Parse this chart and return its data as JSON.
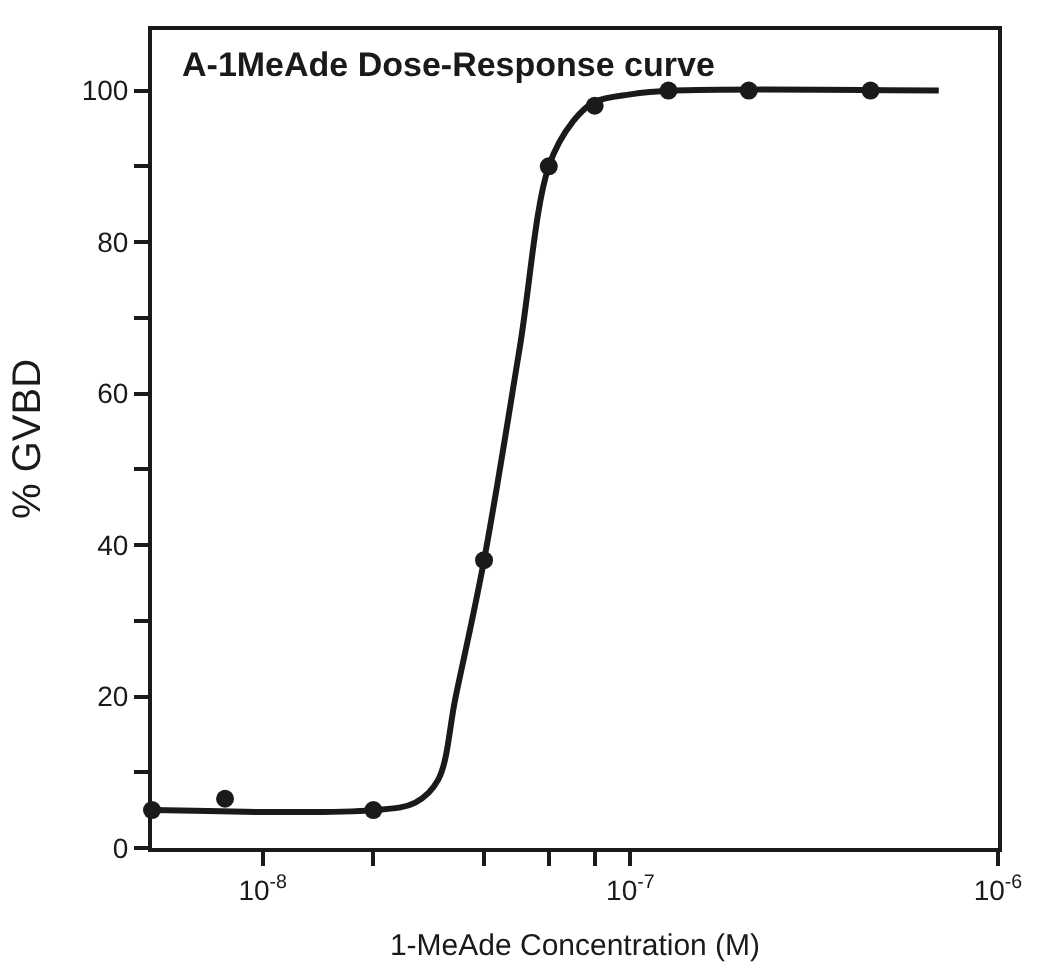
{
  "chart_data": {
    "type": "scatter",
    "title": "A-1MeAde Dose-Response curve",
    "xlabel": "1-MeAde Concentration (M)",
    "ylabel": "% GVBD",
    "log": "x",
    "xlim": [
      5e-09,
      1e-06
    ],
    "xticks": [
      {
        "value": 1e-08,
        "label": "10$^{-8}$"
      },
      {
        "value": 2e-08,
        "label": null
      },
      {
        "value": 4e-08,
        "label": null
      },
      {
        "value": 6e-08,
        "label": null
      },
      {
        "value": 8e-08,
        "label": null
      },
      {
        "value": 1e-07,
        "label": "10$^{-7}$"
      },
      {
        "value": 1e-06,
        "label": "10$^{-6}$"
      }
    ],
    "ylim": [
      0,
      108
    ],
    "yticks": [
      0,
      {
        "value": 10,
        "label": null
      },
      20,
      {
        "value": 30,
        "label": null
      },
      40,
      {
        "value": 50,
        "label": null
      },
      60,
      {
        "value": 70,
        "label": null
      },
      80,
      {
        "value": 90,
        "label": null
      },
      100
    ],
    "marker": "circle",
    "series": [
      {
        "type": "line",
        "color": "#1a1a1a",
        "marker": "none",
        "x": [
          5e-09,
          2e-08,
          2.6e-08,
          3e-08,
          3.35e-08,
          4e-08,
          5e-08,
          6e-08,
          7e-08,
          8e-08,
          1e-07,
          1.3e-07,
          6.9e-07
        ],
        "values": [
          5,
          5,
          6,
          9,
          20,
          38,
          66,
          90,
          96,
          98.5,
          99.5,
          100,
          100
        ]
      },
      {
        "color": "#1a1a1a",
        "x": [
          5e-09,
          7.9e-09,
          2e-08,
          4e-08,
          6e-08,
          8e-08,
          1.27e-07,
          2.1e-07,
          4.5e-07
        ],
        "values": [
          5,
          6.5,
          5,
          38,
          90,
          98,
          100,
          100,
          100
        ]
      }
    ]
  }
}
